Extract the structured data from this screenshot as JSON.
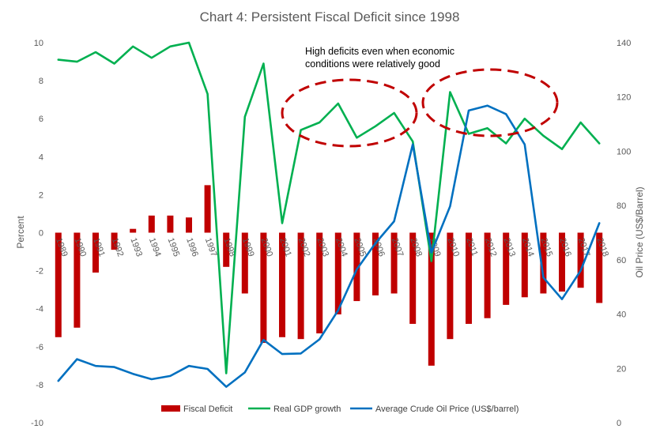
{
  "chart_data": {
    "type": "bar",
    "title": "Chart 4: Persistent Fiscal Deficit since 1998",
    "ylabel": "Percent",
    "y2label": "Oil Price (US$/Barrel)",
    "ylim": [
      -10,
      10
    ],
    "y_ticks": [
      -10,
      -8,
      -6,
      -4,
      -2,
      0,
      2,
      4,
      6,
      8,
      10
    ],
    "y2lim": [
      0,
      140
    ],
    "y2_ticks": [
      0,
      20,
      40,
      60,
      80,
      100,
      120,
      140
    ],
    "categories": [
      "1989",
      "1990",
      "1991",
      "1992",
      "1993",
      "1994",
      "1995",
      "1996",
      "1997",
      "1998",
      "1999",
      "2000",
      "2001",
      "2002",
      "2003",
      "2004",
      "2005",
      "2006",
      "2007",
      "2008",
      "2009",
      "2010",
      "2011",
      "2012",
      "2013",
      "2014",
      "2015",
      "2016",
      "2017",
      "2018"
    ],
    "series": [
      {
        "name": "Fiscal Deficit",
        "type": "bar",
        "axis": "left",
        "color": "#C00000",
        "values": [
          -5.5,
          -5.0,
          -2.1,
          -0.9,
          0.2,
          0.9,
          0.9,
          0.8,
          2.5,
          -1.8,
          -3.2,
          -5.8,
          -5.5,
          -5.6,
          -5.3,
          -4.3,
          -3.6,
          -3.3,
          -3.2,
          -4.8,
          -7.0,
          -5.6,
          -4.8,
          -4.5,
          -3.8,
          -3.4,
          -3.2,
          -3.1,
          -2.9,
          -3.7
        ]
      },
      {
        "name": "Real GDP growth",
        "type": "line",
        "axis": "left",
        "color": "#00B050",
        "values": [
          9.1,
          9.0,
          9.5,
          8.9,
          9.8,
          9.2,
          9.8,
          10.0,
          7.3,
          -7.4,
          6.1,
          8.9,
          0.5,
          5.4,
          5.8,
          6.8,
          5.0,
          5.6,
          6.3,
          4.8,
          -1.5,
          7.4,
          5.2,
          5.5,
          4.7,
          6.0,
          5.1,
          4.4,
          5.8,
          4.7
        ]
      },
      {
        "name": "Average Crude Oil Price (US$/barrel)",
        "type": "line",
        "axis": "right",
        "color": "#0070C0",
        "values": [
          15.4,
          23.4,
          20.9,
          20.5,
          18.0,
          16.0,
          17.2,
          20.9,
          19.8,
          13.2,
          18.5,
          30.5,
          25.3,
          25.5,
          30.7,
          41.4,
          56.5,
          66.1,
          74.2,
          102.5,
          62.7,
          79.7,
          115.0,
          116.8,
          113.7,
          102.5,
          53.5,
          45.5,
          56.0,
          73.5
        ]
      }
    ],
    "annotation": {
      "line1": "High deficits even when economic",
      "line2": "conditions were relatively good"
    },
    "legend_position": "bottom",
    "grid": false
  }
}
